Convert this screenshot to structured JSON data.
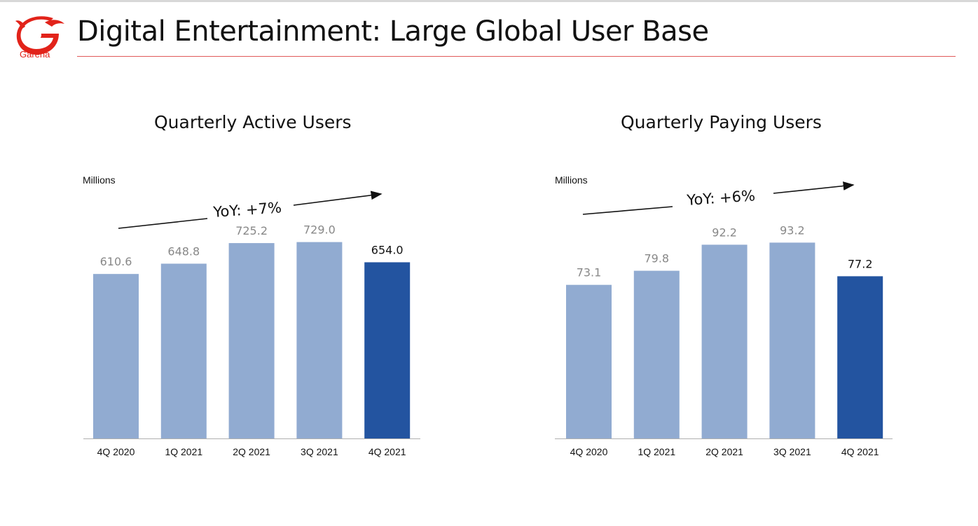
{
  "header": {
    "title": "Digital Entertainment: Large Global User Base",
    "logo_text": "Garena",
    "brand_color": "#e2231a"
  },
  "colors": {
    "bar": "#91abd1",
    "highlight": "#2354a0",
    "value_label": "#888888"
  },
  "chart_data": [
    {
      "type": "bar",
      "title": "Quarterly Active Users",
      "units_label": "Millions",
      "categories": [
        "4Q 2020",
        "1Q 2021",
        "2Q 2021",
        "3Q 2021",
        "4Q 2021"
      ],
      "values": [
        610.6,
        648.8,
        725.2,
        729.0,
        654.0
      ],
      "value_labels": [
        "610.6",
        "648.8",
        "725.2",
        "729.0",
        "654.0"
      ],
      "highlight_index": 4,
      "annotation": "YoY: +7%",
      "ylim": [
        0,
        780
      ],
      "grid": false,
      "legend": "none"
    },
    {
      "type": "bar",
      "title": "Quarterly Paying Users",
      "units_label": "Millions",
      "categories": [
        "4Q 2020",
        "1Q 2021",
        "2Q 2021",
        "3Q 2021",
        "4Q 2021"
      ],
      "values": [
        73.1,
        79.8,
        92.2,
        93.2,
        77.2
      ],
      "value_labels": [
        "73.1",
        "79.8",
        "92.2",
        "93.2",
        "77.2"
      ],
      "highlight_index": 4,
      "annotation": "YoY: +6%",
      "ylim": [
        0,
        100
      ],
      "grid": false,
      "legend": "none"
    }
  ]
}
